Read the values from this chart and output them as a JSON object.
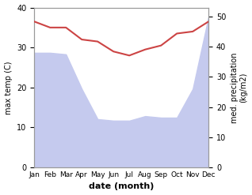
{
  "months": [
    "Jan",
    "Feb",
    "Mar",
    "Apr",
    "May",
    "Jun",
    "Jul",
    "Aug",
    "Sep",
    "Oct",
    "Nov",
    "Dec"
  ],
  "x": [
    0,
    1,
    2,
    3,
    4,
    5,
    6,
    7,
    8,
    9,
    10,
    11
  ],
  "temperature": [
    36.5,
    35.0,
    35.0,
    32.0,
    31.5,
    29.0,
    28.0,
    29.5,
    30.5,
    33.5,
    34.0,
    36.5
  ],
  "precipitation": [
    380,
    380,
    375,
    260,
    160,
    155,
    155,
    170,
    165,
    165,
    260,
    500
  ],
  "temp_color": "#cc4444",
  "precip_fill_color": "#c5caee",
  "ylabel_left": "max temp (C)",
  "ylabel_right": "med. precipitation\n(kg/m2)",
  "xlabel": "date (month)",
  "ylim_left": [
    0,
    40
  ],
  "ylim_right": [
    0,
    530
  ],
  "yticks_left": [
    0,
    10,
    20,
    30,
    40
  ],
  "yticks_right": [
    0,
    100,
    200,
    300,
    400,
    500
  ],
  "ytick_labels_right": [
    "0",
    "10",
    "20",
    "30",
    "40",
    "50"
  ],
  "bg_color": "#ffffff",
  "spine_color": "#999999",
  "temp_linewidth": 1.5,
  "xlabel_fontsize": 8,
  "ylabel_fontsize": 7,
  "tick_fontsize": 7,
  "xtick_fontsize": 6.5
}
